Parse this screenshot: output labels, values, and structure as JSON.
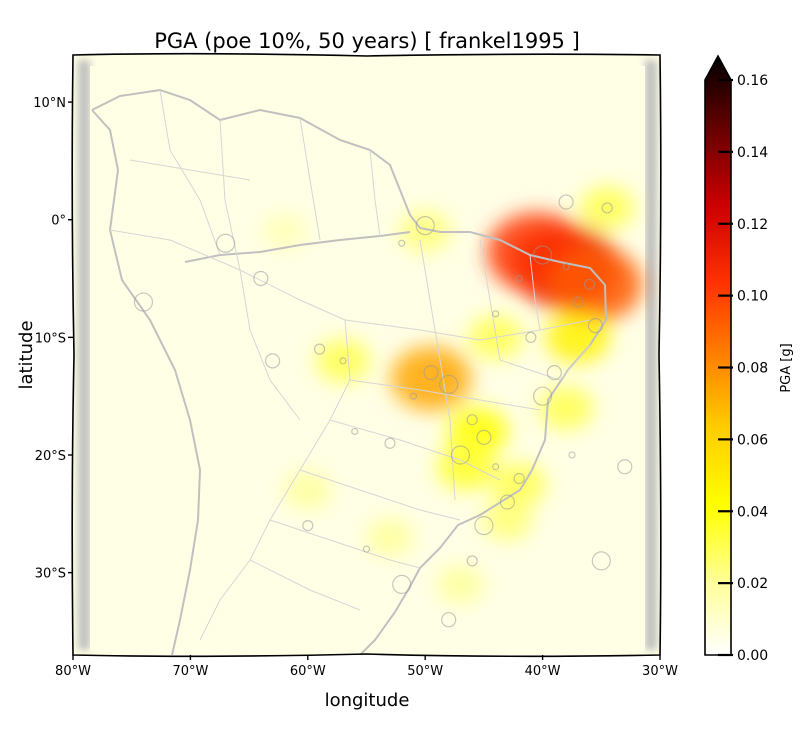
{
  "title": "PGA (poe 10%, 50 years) [ frankel1995 ]",
  "x_axis": {
    "label": "longitude",
    "ticks": [
      {
        "value": -80,
        "label": "80°W"
      },
      {
        "value": -70,
        "label": "70°W"
      },
      {
        "value": -60,
        "label": "60°W"
      },
      {
        "value": -50,
        "label": "50°W"
      },
      {
        "value": -40,
        "label": "40°W"
      },
      {
        "value": -30,
        "label": "30°W"
      }
    ],
    "range": [
      -80,
      -30
    ]
  },
  "y_axis": {
    "label": "latitude",
    "ticks": [
      {
        "value": 10,
        "label": "10°N"
      },
      {
        "value": 0,
        "label": "0°"
      },
      {
        "value": -10,
        "label": "10°S"
      },
      {
        "value": -20,
        "label": "20°S"
      },
      {
        "value": -30,
        "label": "30°S"
      }
    ],
    "range": [
      -37,
      14
    ]
  },
  "colorbar": {
    "label": "PGA [g]",
    "range": [
      0,
      0.16
    ],
    "ticks": [
      "0.00",
      "0.02",
      "0.04",
      "0.06",
      "0.08",
      "0.10",
      "0.12",
      "0.14",
      "0.16"
    ],
    "tick_values": [
      0,
      0.02,
      0.04,
      0.06,
      0.08,
      0.1,
      0.12,
      0.14,
      0.16
    ],
    "extend": "max",
    "colormap": "hot_r",
    "colors": [
      "#ffffff",
      "#ffff80",
      "#ffff00",
      "#ffcc00",
      "#ff8000",
      "#ff3300",
      "#cc0000",
      "#660000",
      "#000000"
    ]
  },
  "colors": {
    "map_background": "#ffffe6",
    "coastline": "#c0c0c0",
    "axes_frame": "#000000"
  },
  "hazard_hotspots": [
    {
      "lon": -38,
      "lat": -4,
      "pga": 0.11
    },
    {
      "lon": -40.5,
      "lat": -2.8,
      "pga": 0.1
    },
    {
      "lon": -35.5,
      "lat": -5.5,
      "pga": 0.09
    },
    {
      "lon": -49.5,
      "lat": -13.5,
      "pga": 0.07
    },
    {
      "lon": -45.5,
      "lat": -18,
      "pga": 0.04
    },
    {
      "lon": -46.5,
      "lat": -21,
      "pga": 0.035
    },
    {
      "lon": -42,
      "lat": -22.5,
      "pga": 0.03
    },
    {
      "lon": -43,
      "lat": -25.5,
      "pga": 0.025
    },
    {
      "lon": -57,
      "lat": -12,
      "pga": 0.03
    },
    {
      "lon": -50,
      "lat": -1,
      "pga": 0.025
    },
    {
      "lon": -34.5,
      "lat": 1,
      "pga": 0.03
    },
    {
      "lon": -60,
      "lat": -23,
      "pga": 0.02
    },
    {
      "lon": -53,
      "lat": -27,
      "pga": 0.02
    },
    {
      "lon": -47,
      "lat": -31,
      "pga": 0.02
    },
    {
      "lon": -62,
      "lat": -1,
      "pga": 0.015
    },
    {
      "lon": -37,
      "lat": -10,
      "pga": 0.045
    },
    {
      "lon": -38,
      "lat": -16,
      "pga": 0.03
    },
    {
      "lon": -44,
      "lat": -10,
      "pga": 0.03
    }
  ],
  "events": [
    {
      "lon": -38,
      "lat": -4
    },
    {
      "lon": -36,
      "lat": -5.5
    },
    {
      "lon": -35.5,
      "lat": -9
    },
    {
      "lon": -40,
      "lat": -3
    },
    {
      "lon": -42,
      "lat": -5
    },
    {
      "lon": -37,
      "lat": -7
    },
    {
      "lon": -49.5,
      "lat": -13
    },
    {
      "lon": -48,
      "lat": -14
    },
    {
      "lon": -51,
      "lat": -15
    },
    {
      "lon": -46,
      "lat": -17
    },
    {
      "lon": -45,
      "lat": -18.5
    },
    {
      "lon": -47,
      "lat": -20
    },
    {
      "lon": -44,
      "lat": -21
    },
    {
      "lon": -42,
      "lat": -22
    },
    {
      "lon": -43,
      "lat": -24
    },
    {
      "lon": -45,
      "lat": -26
    },
    {
      "lon": -57,
      "lat": -12
    },
    {
      "lon": -59,
      "lat": -11
    },
    {
      "lon": -63,
      "lat": -12
    },
    {
      "lon": -50,
      "lat": -0.5
    },
    {
      "lon": -52,
      "lat": -2
    },
    {
      "lon": -34.5,
      "lat": 1
    },
    {
      "lon": -38,
      "lat": 1.5
    },
    {
      "lon": -74,
      "lat": -7
    },
    {
      "lon": -56,
      "lat": -18
    },
    {
      "lon": -53,
      "lat": -19
    },
    {
      "lon": -39,
      "lat": -13
    },
    {
      "lon": -40,
      "lat": -15
    },
    {
      "lon": -37.5,
      "lat": -20
    },
    {
      "lon": -46,
      "lat": -29
    },
    {
      "lon": -48,
      "lat": -34
    },
    {
      "lon": -52,
      "lat": -31
    },
    {
      "lon": -55,
      "lat": -28
    },
    {
      "lon": -60,
      "lat": -26
    },
    {
      "lon": -64,
      "lat": -5
    },
    {
      "lon": -67,
      "lat": -2
    },
    {
      "lon": -44,
      "lat": -8
    },
    {
      "lon": -41,
      "lat": -10
    },
    {
      "lon": -33,
      "lat": -21
    },
    {
      "lon": -35,
      "lat": -29
    }
  ]
}
